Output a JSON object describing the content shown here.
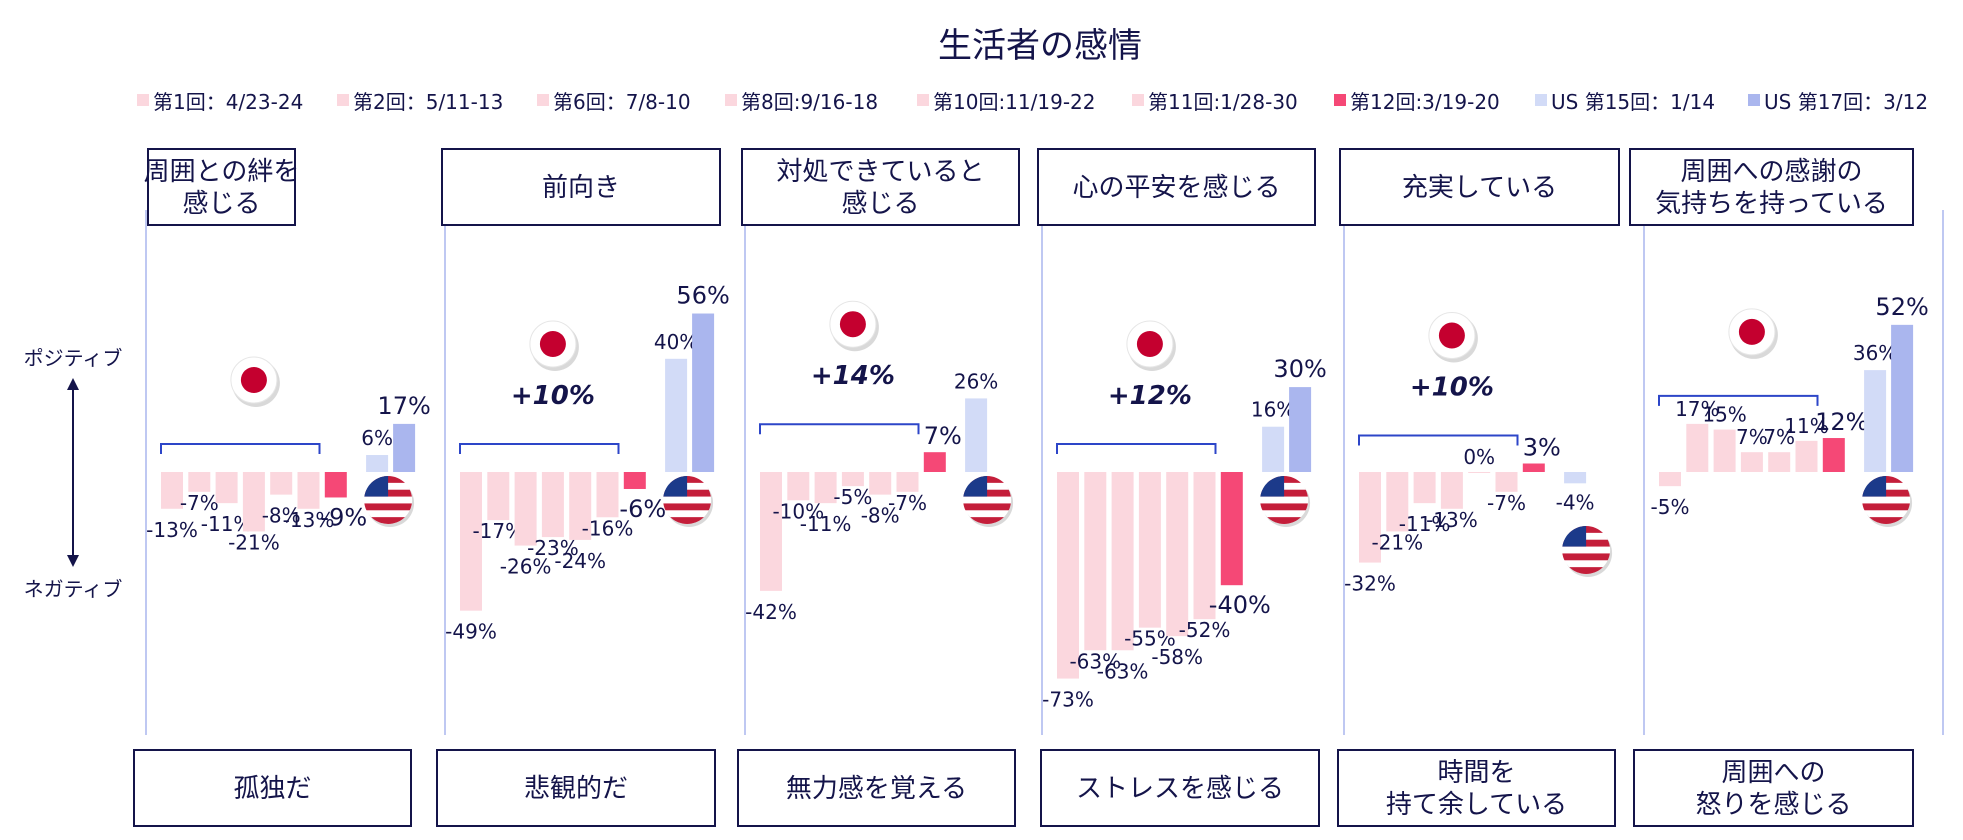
{
  "chart_data": {
    "type": "bar",
    "title": "生活者の感情",
    "axis_labels": {
      "top": "ポジティブ",
      "bottom": "ネガティブ"
    },
    "legend": [
      {
        "label": "第1回：4/23-24",
        "color": "#fbd7de"
      },
      {
        "label": "第2回：5/11-13",
        "color": "#fbd7de"
      },
      {
        "label": "第6回：7/8-10",
        "color": "#fbd7de"
      },
      {
        "label": "第8回:9/16-18",
        "color": "#fbd7de"
      },
      {
        "label": "第10回:11/19-22",
        "color": "#fbd7de"
      },
      {
        "label": "第11回:1/28-30",
        "color": "#fbd7de"
      },
      {
        "label": "第12回:3/19-20",
        "color": "#f54876"
      },
      {
        "label": "US 第15回：1/14",
        "color": "#d2dbf7"
      },
      {
        "label": "US 第17回：3/12",
        "color": "#aab6ee"
      }
    ],
    "series_jp": [
      "第1回：4/23-24",
      "第2回：5/11-13",
      "第6回：7/8-10",
      "第8回:9/16-18",
      "第10回:11/19-22",
      "第11回:1/28-30",
      "第12回:3/19-20"
    ],
    "series_us": [
      "US 第15回：1/14",
      "US 第17回：3/12"
    ],
    "ylim": [
      -75,
      60
    ],
    "groups": [
      {
        "top": "周囲との絆を\n感じる",
        "bottom": "孤独だ",
        "jp": [
          -13,
          -7,
          -11,
          -21,
          -8,
          -13,
          -9
        ],
        "us": [
          6,
          17
        ],
        "delta": ""
      },
      {
        "top": "前向き",
        "bottom": "悲観的だ",
        "jp": [
          -49,
          -17,
          -26,
          -23,
          -24,
          -16,
          -6
        ],
        "us": [
          40,
          56
        ],
        "delta": "+10%"
      },
      {
        "top": "対処できていると\n感じる",
        "bottom": "無力感を覚える",
        "jp": [
          -42,
          -10,
          -11,
          -5,
          -8,
          -7,
          7
        ],
        "us": [
          26,
          null
        ],
        "delta": "+14%"
      },
      {
        "top": "心の平安を感じる",
        "bottom": "ストレスを感じる",
        "jp": [
          -73,
          -63,
          -63,
          -55,
          -58,
          -52,
          -40
        ],
        "us": [
          16,
          30
        ],
        "delta": "+12%"
      },
      {
        "top": "充実している",
        "bottom": "時間を\n持て余している",
        "jp": [
          -32,
          -21,
          -11,
          -13,
          0,
          -7,
          3
        ],
        "us": [
          -4,
          null
        ],
        "delta": "+10%"
      },
      {
        "top": "周囲への感謝の\n気持ちを持っている",
        "bottom": "周囲への\n怒りを感じる",
        "jp": [
          -5,
          17,
          15,
          7,
          7,
          11,
          12
        ],
        "us": [
          36,
          52
        ],
        "delta": ""
      }
    ]
  }
}
